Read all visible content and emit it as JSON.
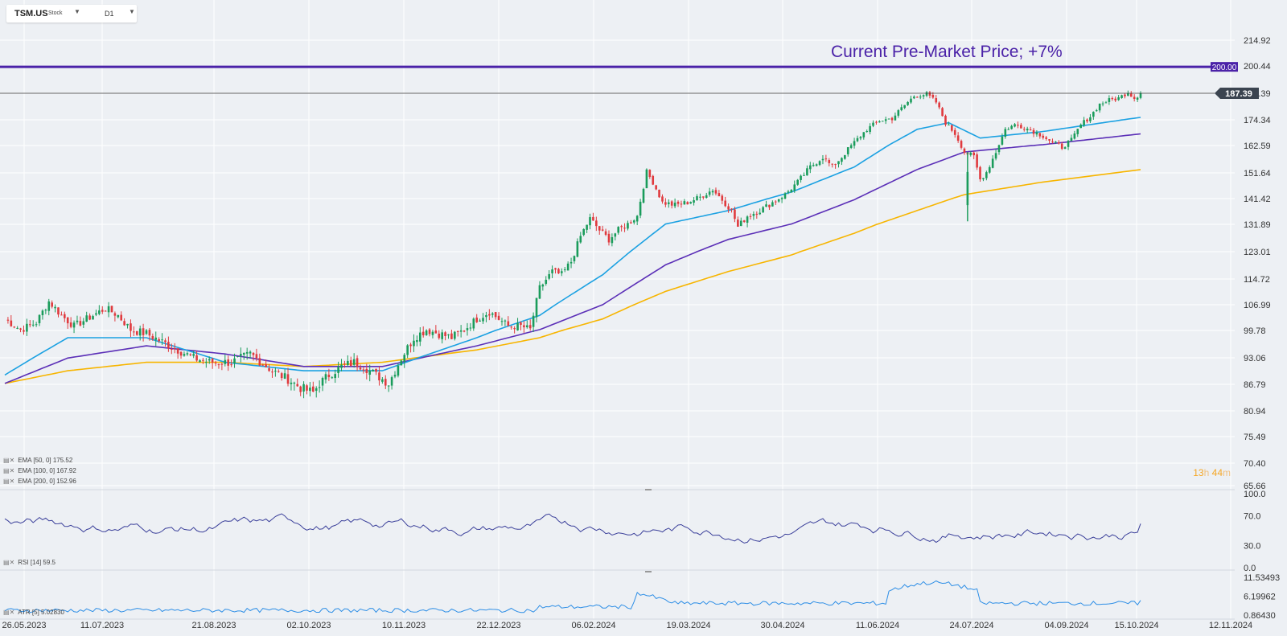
{
  "header": {
    "symbol": "TSM.US",
    "type": "Stock",
    "timeframe": "D1"
  },
  "annotation": "Current Pre-Market Price; +7%",
  "price_line": {
    "value": 200.0,
    "label": "200.00"
  },
  "current_price": {
    "value": 187.39,
    "label": "187.39"
  },
  "legends": {
    "ema50": "EMA [50, 0] 175.52",
    "ema100": "EMA [100, 0] 167.92",
    "ema200": "EMA [200, 0] 152.96",
    "rsi": "RSI [14] 59.5",
    "atr": "ATR [5] 5.02830"
  },
  "timer": {
    "h": "13",
    "h_unit": "h",
    "m": "44",
    "m_unit": "m"
  },
  "colors": {
    "up": "#1a9c5b",
    "down": "#e03a3e",
    "ema50": "#1ba1e2",
    "ema100": "#5b2fb7",
    "ema200": "#f7b500",
    "price_line": "#4b22a8",
    "rsi": "#3a3f9a",
    "atr": "#2d8ee6"
  },
  "chart_data": {
    "type": "candlestick",
    "y_axis_ticks": [
      "214.92",
      "200.44",
      "187.39",
      "174.34",
      "162.59",
      "151.64",
      "141.42",
      "131.89",
      "123.01",
      "114.72",
      "106.99",
      "99.78",
      "93.06",
      "86.79",
      "80.94",
      "75.49",
      "70.40",
      "65.66"
    ],
    "x_axis_ticks": [
      "26.05.2023",
      "11.07.2023",
      "21.08.2023",
      "02.10.2023",
      "10.11.2023",
      "22.12.2023",
      "06.02.2024",
      "19.03.2024",
      "30.04.2024",
      "11.06.2024",
      "24.07.2024",
      "04.09.2024",
      "15.10.2024",
      "12.11.2024"
    ],
    "price_anchors": [
      [
        0,
        103
      ],
      [
        5,
        100
      ],
      [
        10,
        102
      ],
      [
        14,
        108
      ],
      [
        18,
        104
      ],
      [
        22,
        101
      ],
      [
        28,
        104
      ],
      [
        32,
        106
      ],
      [
        36,
        104
      ],
      [
        40,
        100
      ],
      [
        45,
        99
      ],
      [
        50,
        97
      ],
      [
        55,
        95
      ],
      [
        60,
        93
      ],
      [
        65,
        92
      ],
      [
        72,
        92
      ],
      [
        78,
        94
      ],
      [
        85,
        90
      ],
      [
        90,
        88
      ],
      [
        94,
        86
      ],
      [
        98,
        85
      ],
      [
        100,
        87
      ],
      [
        103,
        89
      ],
      [
        107,
        91
      ],
      [
        111,
        92
      ],
      [
        114,
        91
      ],
      [
        118,
        89
      ],
      [
        122,
        87
      ],
      [
        126,
        93
      ],
      [
        130,
        98
      ],
      [
        134,
        100
      ],
      [
        138,
        99
      ],
      [
        142,
        98
      ],
      [
        146,
        100
      ],
      [
        150,
        103
      ],
      [
        154,
        105
      ],
      [
        157,
        103
      ],
      [
        160,
        101
      ],
      [
        164,
        101
      ],
      [
        167,
        100
      ],
      [
        170,
        112
      ],
      [
        174,
        117
      ],
      [
        177,
        116
      ],
      [
        180,
        120
      ],
      [
        183,
        128
      ],
      [
        186,
        134
      ],
      [
        189,
        130
      ],
      [
        192,
        127
      ],
      [
        195,
        130
      ],
      [
        198,
        132
      ],
      [
        201,
        135
      ],
      [
        204,
        152
      ],
      [
        206,
        148
      ],
      [
        209,
        140
      ],
      [
        213,
        139
      ],
      [
        217,
        140
      ],
      [
        221,
        142
      ],
      [
        225,
        145
      ],
      [
        228,
        141
      ],
      [
        231,
        137
      ],
      [
        233,
        131
      ],
      [
        236,
        135
      ],
      [
        240,
        137
      ],
      [
        244,
        140
      ],
      [
        248,
        143
      ],
      [
        252,
        148
      ],
      [
        256,
        154
      ],
      [
        260,
        158
      ],
      [
        263,
        154
      ],
      [
        266,
        158
      ],
      [
        270,
        164
      ],
      [
        274,
        170
      ],
      [
        278,
        174
      ],
      [
        282,
        175
      ],
      [
        285,
        180
      ],
      [
        289,
        186
      ],
      [
        293,
        187
      ],
      [
        296,
        183
      ],
      [
        299,
        173
      ],
      [
        302,
        168
      ],
      [
        305,
        160
      ],
      [
        308,
        158
      ],
      [
        310,
        149
      ],
      [
        312,
        152
      ],
      [
        315,
        160
      ],
      [
        318,
        170
      ],
      [
        321,
        172
      ],
      [
        324,
        171
      ],
      [
        327,
        169
      ],
      [
        330,
        167
      ],
      [
        333,
        164
      ],
      [
        336,
        162
      ],
      [
        339,
        165
      ],
      [
        342,
        172
      ],
      [
        345,
        176
      ],
      [
        348,
        182
      ],
      [
        351,
        184
      ],
      [
        354,
        185
      ],
      [
        357,
        188
      ],
      [
        359,
        185
      ],
      [
        361,
        187.39
      ]
    ],
    "emas": [
      {
        "name": "EMA 50",
        "points": [
          [
            0,
            89
          ],
          [
            20,
            98
          ],
          [
            45,
            98
          ],
          [
            70,
            92
          ],
          [
            95,
            90
          ],
          [
            120,
            90
          ],
          [
            150,
            98
          ],
          [
            170,
            104
          ],
          [
            190,
            116
          ],
          [
            210,
            132
          ],
          [
            230,
            137
          ],
          [
            250,
            144
          ],
          [
            270,
            154
          ],
          [
            290,
            170
          ],
          [
            300,
            173
          ],
          [
            310,
            166
          ],
          [
            330,
            169
          ],
          [
            361,
            175.52
          ]
        ]
      },
      {
        "name": "EMA 100",
        "points": [
          [
            0,
            87
          ],
          [
            20,
            93
          ],
          [
            45,
            96
          ],
          [
            70,
            94
          ],
          [
            95,
            91
          ],
          [
            120,
            91
          ],
          [
            150,
            96
          ],
          [
            170,
            100
          ],
          [
            190,
            107
          ],
          [
            210,
            119
          ],
          [
            230,
            127
          ],
          [
            250,
            132
          ],
          [
            270,
            141
          ],
          [
            290,
            153
          ],
          [
            305,
            160
          ],
          [
            330,
            163
          ],
          [
            361,
            167.92
          ]
        ]
      },
      {
        "name": "EMA 200",
        "points": [
          [
            0,
            87
          ],
          [
            20,
            90
          ],
          [
            45,
            92
          ],
          [
            70,
            92
          ],
          [
            95,
            91
          ],
          [
            120,
            92
          ],
          [
            150,
            95
          ],
          [
            170,
            98
          ],
          [
            190,
            103
          ],
          [
            210,
            111
          ],
          [
            230,
            117
          ],
          [
            250,
            122
          ],
          [
            270,
            129
          ],
          [
            290,
            137
          ],
          [
            305,
            143
          ],
          [
            330,
            148
          ],
          [
            361,
            152.96
          ]
        ]
      }
    ],
    "rsi": {
      "ylim": [
        0,
        100
      ],
      "ticks": [
        "100.0",
        "70.0",
        "30.0",
        "0.0"
      ],
      "last": 59.5
    },
    "atr": {
      "ticks": [
        "11.53493",
        "6.19962",
        "0.86430"
      ],
      "last": 5.0283
    }
  }
}
